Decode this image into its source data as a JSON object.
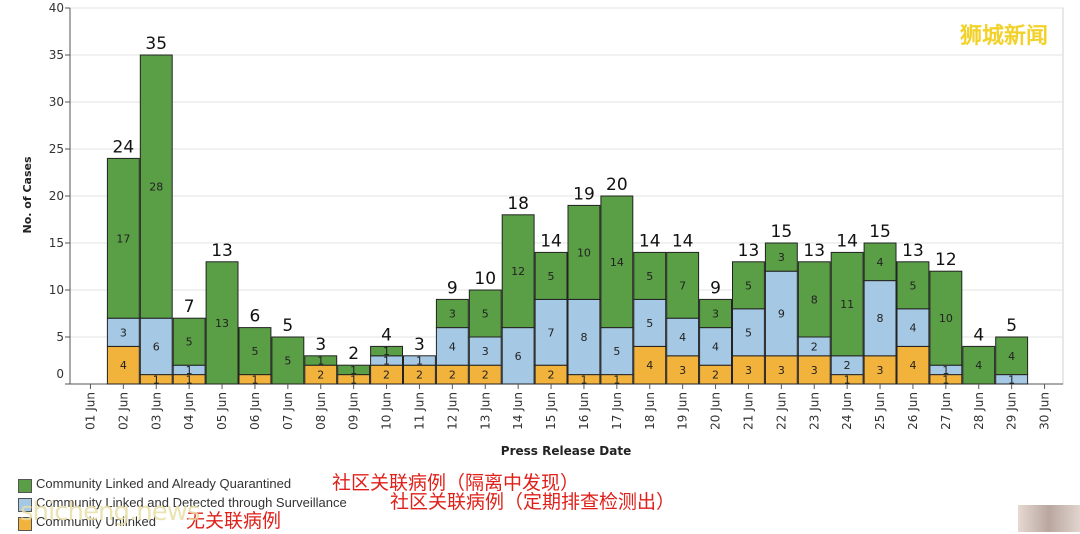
{
  "watermark": "狮城新闻",
  "site_watermark": "shicheng.news",
  "legend": {
    "items": [
      {
        "label": "Community Linked and Already Quarantined",
        "note": "社区关联病例（隔离中发现）",
        "color": "#5a9e46"
      },
      {
        "label": "Community Linked and Detected through Surveillance",
        "note": "社区关联病例（定期排查检测出）",
        "color": "#a5c8e4"
      },
      {
        "label": "Community Unlinked",
        "note": "无关联病例",
        "color": "#f2b33d"
      }
    ]
  },
  "chart_data": {
    "type": "bar",
    "stacked": true,
    "xlabel": "Press Release Date",
    "ylabel": "No. of Cases",
    "ylim": [
      0,
      40
    ],
    "yticks": [
      0,
      5,
      10,
      15,
      20,
      25,
      30,
      35,
      40
    ],
    "grid": true,
    "categories": [
      "01 Jun",
      "02 Jun",
      "03 Jun",
      "04 Jun",
      "05 Jun",
      "06 Jun",
      "07 Jun",
      "08 Jun",
      "09 Jun",
      "10 Jun",
      "11 Jun",
      "12 Jun",
      "13 Jun",
      "14 Jun",
      "15 Jun",
      "16 Jun",
      "17 Jun",
      "18 Jun",
      "19 Jun",
      "20 Jun",
      "21 Jun",
      "22 Jun",
      "23 Jun",
      "24 Jun",
      "25 Jun",
      "26 Jun",
      "27 Jun",
      "28 Jun",
      "29 Jun",
      "30 Jun"
    ],
    "totals": [
      null,
      24,
      35,
      7,
      13,
      6,
      5,
      3,
      2,
      4,
      3,
      9,
      10,
      18,
      14,
      19,
      20,
      14,
      14,
      9,
      13,
      15,
      13,
      14,
      15,
      13,
      12,
      4,
      5,
      null
    ],
    "series": [
      {
        "name": "Community Unlinked",
        "color": "#f2b33d",
        "values": [
          null,
          4,
          1,
          1,
          0,
          1,
          0,
          2,
          1,
          2,
          2,
          2,
          2,
          0,
          2,
          1,
          1,
          4,
          3,
          2,
          3,
          3,
          3,
          1,
          3,
          4,
          1,
          0,
          0,
          null
        ]
      },
      {
        "name": "Community Linked and Detected through Surveillance",
        "color": "#a5c8e4",
        "values": [
          null,
          3,
          6,
          1,
          0,
          0,
          0,
          0,
          0,
          1,
          1,
          4,
          3,
          6,
          7,
          8,
          5,
          5,
          4,
          4,
          5,
          9,
          2,
          2,
          8,
          4,
          1,
          0,
          1,
          null
        ]
      },
      {
        "name": "Community Linked and Already Quarantined",
        "color": "#5a9e46",
        "values": [
          null,
          17,
          28,
          5,
          13,
          5,
          5,
          1,
          1,
          1,
          0,
          3,
          5,
          12,
          5,
          10,
          14,
          5,
          7,
          3,
          5,
          3,
          8,
          11,
          4,
          5,
          10,
          4,
          4,
          null
        ]
      }
    ]
  }
}
